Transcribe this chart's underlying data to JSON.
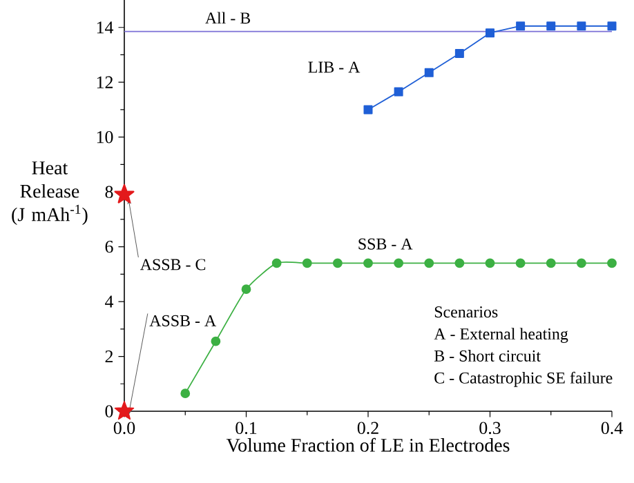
{
  "chart_data": {
    "type": "line",
    "xlabel": "Volume Fraction of LE in Electrodes",
    "ylabel": "Heat Release (J mAh$^{-1}$)",
    "xlim": [
      0,
      0.4
    ],
    "ylim": [
      0,
      15
    ],
    "xticks": [
      {
        "value": 0,
        "label": "0.0"
      },
      0.1,
      0.2,
      0.3,
      0.4
    ],
    "yticks": [
      0,
      2,
      4,
      6,
      8,
      10,
      12,
      14
    ],
    "grid": false,
    "legend": false,
    "series": [
      {
        "name": "All - B",
        "color": "#7b6fd6",
        "marker": "none",
        "x": [
          0,
          0.4
        ],
        "values": [
          13.85,
          13.85
        ]
      },
      {
        "name": "LIB - A",
        "color": "#1f5fd6",
        "marker": "square",
        "x": [
          0.2,
          0.225,
          0.25,
          0.275,
          0.3,
          0.325,
          0.35,
          0.375,
          0.4
        ],
        "values": [
          11.0,
          11.65,
          12.35,
          13.05,
          13.8,
          14.05,
          14.05,
          14.05,
          14.05
        ]
      },
      {
        "name": "SSB - A",
        "color": "#3cb043",
        "marker": "circle",
        "x": [
          0.05,
          0.075,
          0.1,
          0.125,
          0.15,
          0.175,
          0.2,
          0.225,
          0.25,
          0.275,
          0.3,
          0.325,
          0.35,
          0.375,
          0.4
        ],
        "values": [
          0.65,
          2.55,
          4.45,
          5.4,
          5.4,
          5.4,
          5.4,
          5.4,
          5.4,
          5.4,
          5.4,
          5.4,
          5.4,
          5.4,
          5.4
        ]
      },
      {
        "name": "ASSB - C",
        "type": "scatter",
        "color": "#e31a1c",
        "marker": "star",
        "x": [
          0
        ],
        "values": [
          7.9
        ]
      },
      {
        "name": "ASSB - A",
        "type": "scatter",
        "color": "#e31a1c",
        "marker": "star",
        "x": [
          0
        ],
        "values": [
          0
        ]
      }
    ],
    "annotations": [
      "Scenarios",
      "A - External heating",
      "B - Short circuit",
      "C - Catastrophic SE failure"
    ]
  }
}
